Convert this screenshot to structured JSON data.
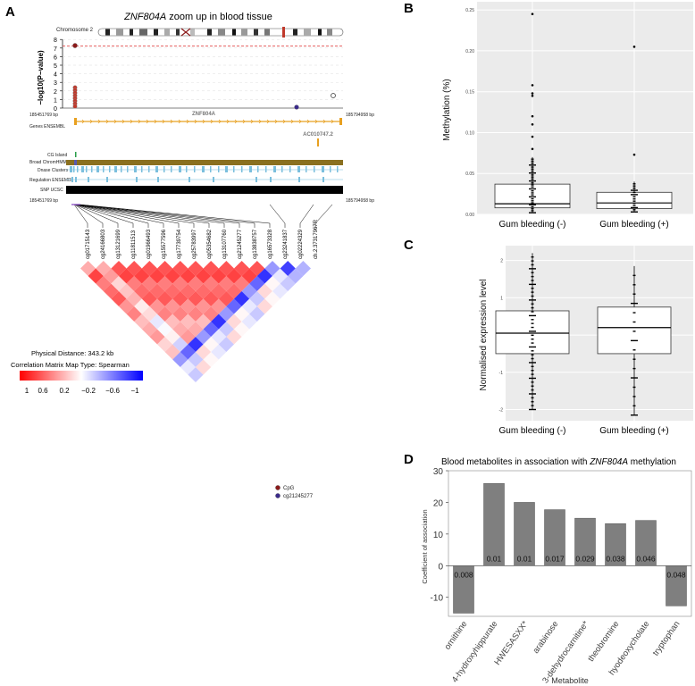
{
  "panels": {
    "A": {
      "letter": "A",
      "title_gene": "ZNF804A",
      "title_rest": " zoom up in blood tissue",
      "chromosome": "Chromosome 2",
      "yaxis_label": "−log10(P−value)",
      "yticks": [
        "0",
        "1",
        "2",
        "3",
        "4",
        "5",
        "6",
        "7",
        "8"
      ],
      "bp_left": "185451769 bp",
      "bp_right": "185794958 bp",
      "tracks": [
        "Genes ENSEMBL",
        "CG Island",
        "Broad ChromHMM",
        "Dnase Clusters",
        "Regulation ENSEMBL",
        "SNP UCSC"
      ],
      "gene_label": "ZNF804A",
      "gene_label2": "AC010747.2",
      "probes": [
        "cg01715143",
        "cg24166803",
        "cg13121699",
        "cg11811513",
        "cg01966493",
        "cg15577596",
        "cg17739754",
        "cg25783997",
        "cg05354682",
        "cg13107760",
        "cg21245277",
        "cg13838757",
        "cg16573328",
        "cg23241837",
        "cg02224329",
        "ch.2.37317967R"
      ],
      "physical_distance": "Physical Distance: 343.2 kb",
      "matrix_type": "Correlation Matrix Map Type: Spearman",
      "scale_ticks": [
        "1",
        "0.6",
        "0.2",
        "−0.2",
        "−0.6",
        "−1"
      ],
      "legend": [
        {
          "label": "CpG",
          "color": "#8b1a1a"
        },
        {
          "label": "cg21245277",
          "color": "#3a2a8a"
        }
      ]
    },
    "B": {
      "letter": "B",
      "chart_data": {
        "type": "box",
        "ylabel": "Methylation (%)",
        "categories": [
          "Gum bleeding (-)",
          "Gum bleeding (+)"
        ],
        "yticks": [
          "0.00",
          "0.05",
          "0.10",
          "0.15",
          "0.20",
          "0.25"
        ],
        "ylim": [
          0,
          0.26
        ],
        "boxes": [
          {
            "q1": 0.008,
            "median": 0.013,
            "q3": 0.037,
            "min": 0.002,
            "max": 0.07
          },
          {
            "q1": 0.007,
            "median": 0.014,
            "q3": 0.027,
            "min": 0.003,
            "max": 0.04
          }
        ],
        "outliers": [
          [
            0.245,
            0.158,
            0.148,
            0.145,
            0.12,
            0.11,
            0.095,
            0.08
          ],
          [
            0.205,
            0.073
          ]
        ]
      }
    },
    "C": {
      "letter": "C",
      "chart_data": {
        "type": "box",
        "ylabel": "Normalised expression level",
        "categories": [
          "Gum bleeding (-)",
          "Gum bleeding (+)"
        ],
        "yticks": [
          "-2",
          "-1",
          "0",
          "1",
          "2"
        ],
        "ylim": [
          -2.3,
          2.4
        ],
        "boxes": [
          {
            "q1": -0.5,
            "median": 0.05,
            "q3": 0.65,
            "min": -2.0,
            "max": 2.2
          },
          {
            "q1": -0.5,
            "median": 0.2,
            "q3": 0.75,
            "min": -2.15,
            "max": 1.85
          }
        ]
      }
    },
    "D": {
      "letter": "D",
      "title_pre": "Blood metabolites in association with ",
      "title_gene": "ZNF804A",
      "title_post": " methylation",
      "chart_data": {
        "type": "bar",
        "xlabel": "Metabolite",
        "ylabel": "Coefficient of association",
        "yticks": [
          "-10",
          "0",
          "10",
          "20",
          "30"
        ],
        "ylim": [
          -16,
          30
        ],
        "categories": [
          "ornithine",
          "4-hydroxyhippurate",
          "HWESASXX*",
          "arabinose",
          "3-dehydrocarnitine*",
          "theobromine",
          "hyodeoxycholate",
          "tryptophan"
        ],
        "values": [
          -15,
          26,
          20,
          17.7,
          15,
          13.3,
          14.3,
          -12.7
        ],
        "pvalues": [
          "0.008",
          "0.01",
          "0.01",
          "0.017",
          "0.029",
          "0.038",
          "0.046",
          "0.048"
        ],
        "bar_color": "#7f7f7f"
      }
    }
  }
}
